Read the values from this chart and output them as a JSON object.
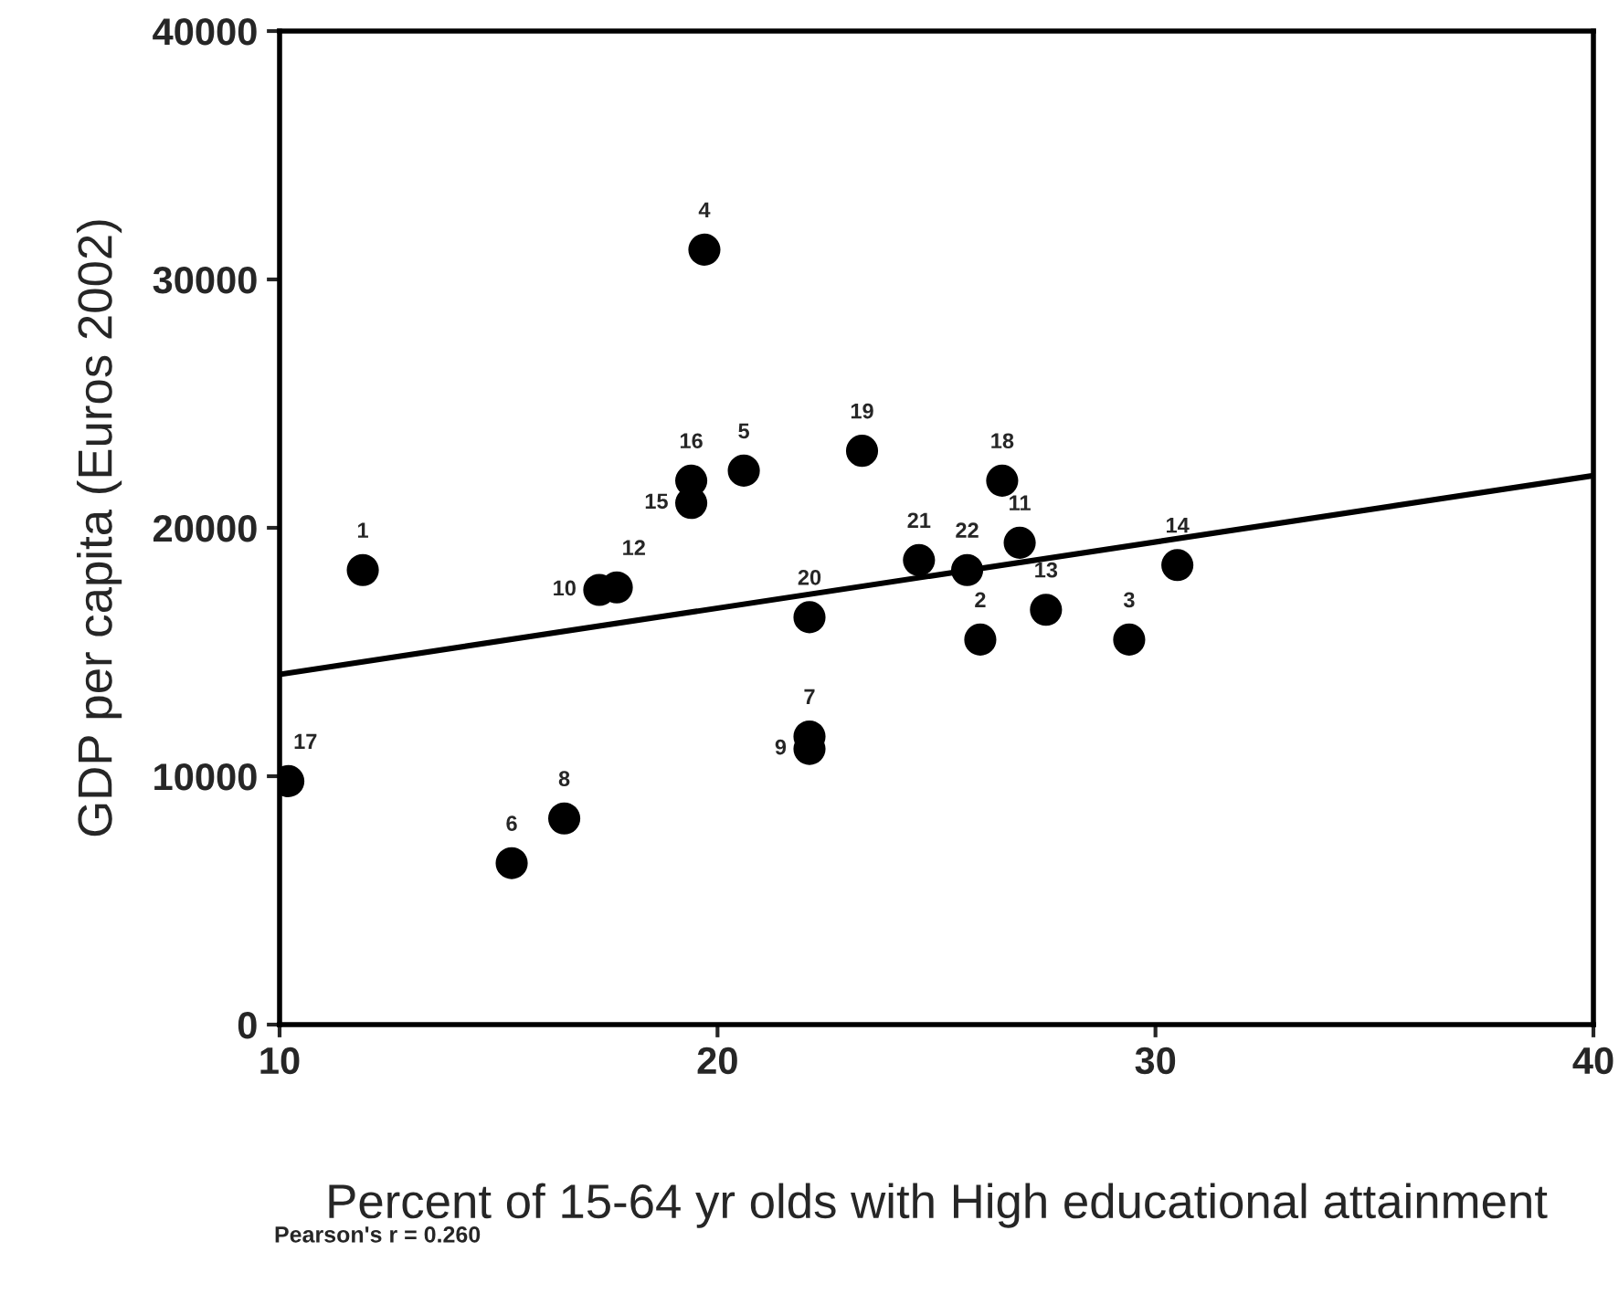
{
  "chart_data": {
    "type": "scatter",
    "xlabel": "Percent of 15-64 yr olds with High educational attainment",
    "ylabel": "GDP per capita (Euros 2002)",
    "xlim": [
      10,
      40
    ],
    "ylim": [
      0,
      40000
    ],
    "xticks": [
      10,
      20,
      30,
      40
    ],
    "yticks": [
      0,
      10000,
      20000,
      30000,
      40000
    ],
    "grid": false,
    "legend": false,
    "series": [
      {
        "color": "#000000",
        "marker": "circle",
        "x": [
          11.9,
          26.0,
          29.4,
          19.7,
          20.6,
          15.3,
          22.1,
          16.5,
          22.1,
          17.3,
          26.9,
          17.7,
          27.5,
          30.5,
          19.4,
          19.4,
          10.2,
          26.5,
          23.3,
          22.1,
          24.6,
          25.7
        ],
        "values": [
          18300,
          15500,
          15500,
          31200,
          22300,
          6500,
          11600,
          8300,
          11100,
          17500,
          19400,
          17600,
          16700,
          18500,
          21000,
          21900,
          9800,
          21900,
          23100,
          16400,
          18700,
          18300
        ]
      },
      {
        "type": "line",
        "color": "#000000",
        "x": [
          10,
          40
        ],
        "values": [
          14100,
          22100
        ]
      }
    ],
    "annotations": [
      {
        "text": "1",
        "x": 11.9,
        "y": 18300
      },
      {
        "text": "2",
        "x": 26.0,
        "y": 15500
      },
      {
        "text": "3",
        "x": 29.4,
        "y": 15500
      },
      {
        "text": "4",
        "x": 19.7,
        "y": 31200
      },
      {
        "text": "5",
        "x": 20.6,
        "y": 22300
      },
      {
        "text": "6",
        "x": 15.3,
        "y": 6500
      },
      {
        "text": "7",
        "x": 22.1,
        "y": 11600
      },
      {
        "text": "8",
        "x": 16.5,
        "y": 8300
      },
      {
        "text": "9",
        "x": 22.1,
        "y": 11100
      },
      {
        "text": "10",
        "x": 17.3,
        "y": 17500
      },
      {
        "text": "11",
        "x": 26.9,
        "y": 19400
      },
      {
        "text": "12",
        "x": 17.7,
        "y": 17600
      },
      {
        "text": "13",
        "x": 27.5,
        "y": 16700
      },
      {
        "text": "14",
        "x": 30.5,
        "y": 18500
      },
      {
        "text": "15",
        "x": 19.4,
        "y": 21000
      },
      {
        "text": "16",
        "x": 19.4,
        "y": 21900
      },
      {
        "text": "17",
        "x": 10.2,
        "y": 9800
      },
      {
        "text": "18",
        "x": 26.5,
        "y": 21900
      },
      {
        "text": "19",
        "x": 23.3,
        "y": 23100
      },
      {
        "text": "20",
        "x": 22.1,
        "y": 16400
      },
      {
        "text": "21",
        "x": 24.6,
        "y": 18700
      },
      {
        "text": "22",
        "x": 25.7,
        "y": 18300
      },
      "Pearson's r = 0.260"
    ]
  }
}
